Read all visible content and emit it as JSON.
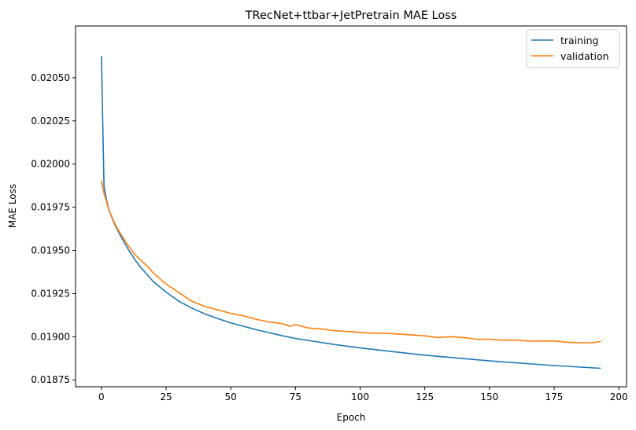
{
  "chart_data": {
    "type": "line",
    "title": "TRecNet+ttbar+JetPretrain MAE Loss",
    "xlabel": "Epoch",
    "ylabel": "MAE Loss",
    "xlim": [
      -10,
      203
    ],
    "ylim": [
      0.01871,
      0.0208
    ],
    "xticks": [
      0,
      25,
      50,
      75,
      100,
      125,
      150,
      175,
      200
    ],
    "xtick_labels": [
      "0",
      "25",
      "50",
      "75",
      "100",
      "125",
      "150",
      "175",
      "200"
    ],
    "yticks": [
      0.01875,
      0.019,
      0.01925,
      0.0195,
      0.01975,
      0.02,
      0.02025,
      0.0205
    ],
    "ytick_labels": [
      "0.01875",
      "0.01900",
      "0.01925",
      "0.01950",
      "0.01975",
      "0.02000",
      "0.02025",
      "0.02050"
    ],
    "grid": false,
    "legend_position": "top-right",
    "series": [
      {
        "name": "training",
        "color": "#1f77b4",
        "points": [
          [
            0,
            0.020625
          ],
          [
            1,
            0.01987
          ],
          [
            2,
            0.01979
          ],
          [
            3,
            0.01973
          ],
          [
            5,
            0.019655
          ],
          [
            7,
            0.019595
          ],
          [
            10,
            0.019515
          ],
          [
            13,
            0.019445
          ],
          [
            15,
            0.019405
          ],
          [
            20,
            0.01932
          ],
          [
            25,
            0.019258
          ],
          [
            30,
            0.019205
          ],
          [
            35,
            0.019165
          ],
          [
            40,
            0.019132
          ],
          [
            45,
            0.019105
          ],
          [
            50,
            0.01908
          ],
          [
            60,
            0.01904
          ],
          [
            70,
            0.019005
          ],
          [
            75,
            0.01899
          ],
          [
            80,
            0.018978
          ],
          [
            90,
            0.018955
          ],
          [
            100,
            0.018935
          ],
          [
            110,
            0.018918
          ],
          [
            125,
            0.018893
          ],
          [
            150,
            0.01886
          ],
          [
            175,
            0.018833
          ],
          [
            193,
            0.018817
          ]
        ]
      },
      {
        "name": "validation",
        "color": "#ff7f0e",
        "points": [
          [
            0,
            0.019905
          ],
          [
            1,
            0.01983
          ],
          [
            2,
            0.01978
          ],
          [
            3,
            0.01973
          ],
          [
            5,
            0.01966
          ],
          [
            7,
            0.019605
          ],
          [
            10,
            0.019535
          ],
          [
            13,
            0.019475
          ],
          [
            15,
            0.019445
          ],
          [
            18,
            0.019405
          ],
          [
            20,
            0.01937
          ],
          [
            23,
            0.01933
          ],
          [
            25,
            0.019305
          ],
          [
            28,
            0.019275
          ],
          [
            30,
            0.019255
          ],
          [
            33,
            0.019225
          ],
          [
            35,
            0.019205
          ],
          [
            40,
            0.019175
          ],
          [
            45,
            0.019155
          ],
          [
            50,
            0.019135
          ],
          [
            55,
            0.01912
          ],
          [
            60,
            0.0191
          ],
          [
            65,
            0.019085
          ],
          [
            70,
            0.019075
          ],
          [
            73,
            0.01906
          ],
          [
            75,
            0.01907
          ],
          [
            80,
            0.01905
          ],
          [
            85,
            0.019045
          ],
          [
            90,
            0.019035
          ],
          [
            95,
            0.01903
          ],
          [
            100,
            0.019025
          ],
          [
            105,
            0.01902
          ],
          [
            110,
            0.01902
          ],
          [
            115,
            0.019015
          ],
          [
            120,
            0.01901
          ],
          [
            125,
            0.019005
          ],
          [
            130,
            0.018995
          ],
          [
            135,
            0.019
          ],
          [
            140,
            0.018995
          ],
          [
            145,
            0.018985
          ],
          [
            150,
            0.018985
          ],
          [
            155,
            0.01898
          ],
          [
            160,
            0.01898
          ],
          [
            165,
            0.018975
          ],
          [
            170,
            0.018975
          ],
          [
            175,
            0.018975
          ],
          [
            180,
            0.018968
          ],
          [
            185,
            0.018965
          ],
          [
            190,
            0.018965
          ],
          [
            193,
            0.018973
          ]
        ]
      }
    ]
  }
}
